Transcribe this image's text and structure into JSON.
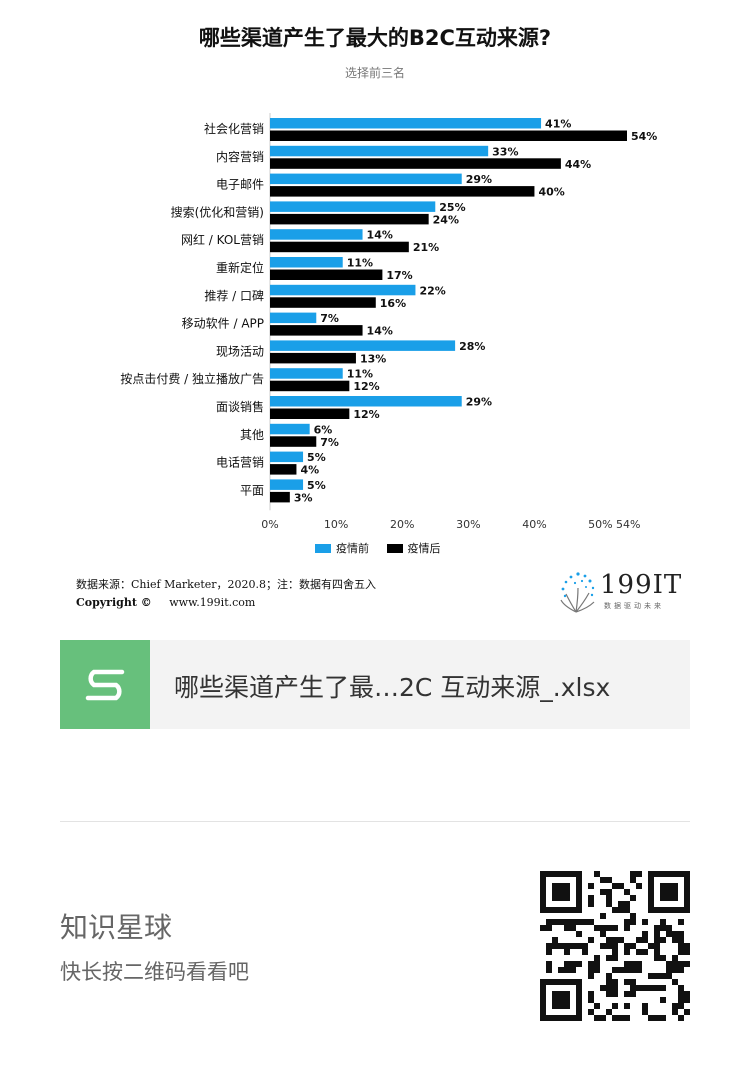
{
  "chart_data": {
    "type": "bar",
    "orientation": "horizontal",
    "title": "哪些渠道产生了最大的B2C互动来源?",
    "subtitle": "选择前三名",
    "categories": [
      "社会化营销",
      "内容营销",
      "电子邮件",
      "搜索(优化和营销)",
      "网红 / KOL营销",
      "重新定位",
      "推荐 / 口碑",
      "移动软件 / APP",
      "现场活动",
      "按点击付费 / 独立播放广告",
      "面谈销售",
      "其他",
      "电话营销",
      "平面"
    ],
    "series": [
      {
        "name": "疫情前",
        "color": "#1a9fe8",
        "values": [
          41,
          33,
          29,
          25,
          14,
          11,
          22,
          7,
          28,
          11,
          29,
          6,
          5,
          5
        ]
      },
      {
        "name": "疫情后",
        "color": "#000000",
        "values": [
          54,
          44,
          40,
          24,
          21,
          17,
          16,
          14,
          13,
          12,
          12,
          7,
          4,
          3
        ]
      }
    ],
    "value_suffix": "%",
    "xlim": [
      0,
      54
    ],
    "x_ticks": [
      "0%",
      "10%",
      "20%",
      "30%",
      "40%",
      "50%",
      "54%"
    ],
    "x_tick_values": [
      0,
      10,
      20,
      30,
      40,
      50,
      54
    ],
    "legend_placement": "bottom",
    "grid": false
  },
  "footer": {
    "source": "数据来源：Chief Marketer，2020.8；注：数据有四舍五入",
    "copyright_label": "Copyright ©",
    "copyright_site": "www.199it.com",
    "brand_name": "199IT",
    "brand_slogan": "数据驱动未来"
  },
  "file_card": {
    "icon": "s-logo-icon",
    "accent": "#67c07c",
    "name": "哪些渠道产生了最…2C 互动来源_.xlsx"
  },
  "promo": {
    "title": "知识星球",
    "subtitle": "快长按二维码看看吧",
    "qr_icon": "qr-code-icon"
  }
}
